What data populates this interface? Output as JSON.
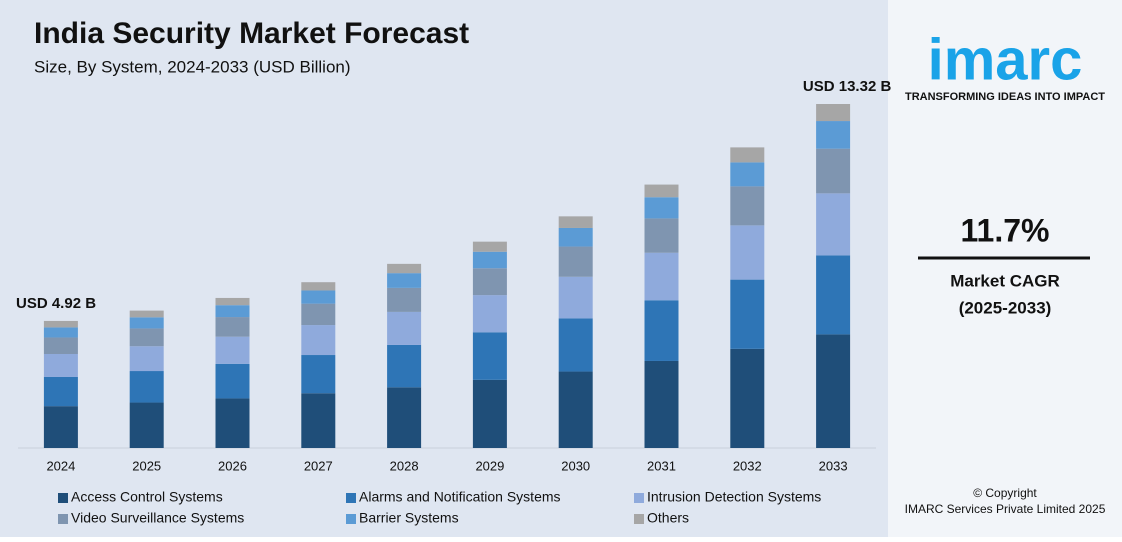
{
  "chart_data": {
    "type": "stacked_bar",
    "title": "India Security Market Forecast",
    "subtitle": "Size, By System, 2024-2033 (USD Billion)",
    "categories": [
      "2024",
      "2025",
      "2026",
      "2027",
      "2028",
      "2029",
      "2030",
      "2031",
      "2032",
      "2033"
    ],
    "series": [
      {
        "name": "Access Control Systems",
        "color": "#1f4e79",
        "values": [
          1.62,
          1.76,
          1.92,
          2.12,
          2.35,
          2.64,
          2.96,
          3.37,
          3.84,
          4.4
        ]
      },
      {
        "name": "Alarms and Notification Systems",
        "color": "#2e75b6",
        "values": [
          1.13,
          1.22,
          1.34,
          1.48,
          1.64,
          1.84,
          2.06,
          2.35,
          2.68,
          3.06
        ]
      },
      {
        "name": "Intrusion Detection Systems",
        "color": "#8faadc",
        "values": [
          0.89,
          0.96,
          1.05,
          1.16,
          1.28,
          1.44,
          1.61,
          1.84,
          2.1,
          2.4
        ]
      },
      {
        "name": "Video Surveillance Systems",
        "color": "#7f95b0",
        "values": [
          0.64,
          0.69,
          0.76,
          0.83,
          0.93,
          1.04,
          1.17,
          1.33,
          1.51,
          1.73
        ]
      },
      {
        "name": "Barrier Systems",
        "color": "#5b9bd5",
        "values": [
          0.39,
          0.43,
          0.46,
          0.51,
          0.57,
          0.64,
          0.72,
          0.82,
          0.93,
          1.07
        ]
      },
      {
        "name": "Others",
        "color": "#a6a6a6",
        "values": [
          0.25,
          0.26,
          0.28,
          0.32,
          0.36,
          0.39,
          0.45,
          0.49,
          0.58,
          0.66
        ]
      }
    ],
    "annotations": [
      "USD 4.92 B",
      "USD 13.32 B"
    ]
  },
  "sidebar": {
    "logo": "imarc",
    "tagline": "TRANSFORMING IDEAS INTO IMPACT",
    "cagr": "11.7%",
    "cagr_label": "Market CAGR",
    "cagr_period": "(2025-2033)",
    "copyright": "© Copyright",
    "company": "IMARC Services Private Limited 2025"
  }
}
